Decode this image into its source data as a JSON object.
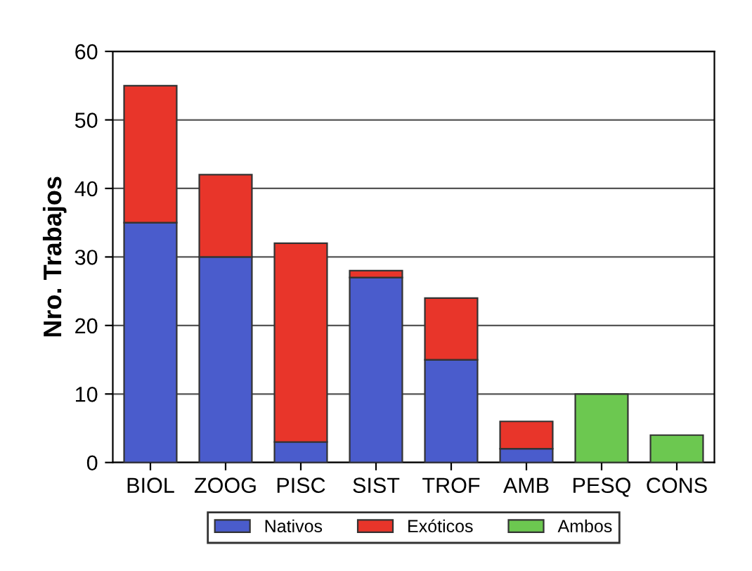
{
  "chart_data": {
    "type": "bar",
    "stacked": true,
    "ylabel": "Nro. Trabajos",
    "categories": [
      "BIOL",
      "ZOOG",
      "PISC",
      "SIST",
      "TROF",
      "AMB",
      "PESQ",
      "CONS"
    ],
    "series": [
      {
        "name": "Nativos",
        "color": "#4a5ccc",
        "values": [
          35,
          30,
          3,
          27,
          15,
          2,
          null,
          null
        ]
      },
      {
        "name": "Exóticos",
        "color": "#e8352a",
        "values": [
          20,
          12,
          29,
          1,
          9,
          4,
          null,
          null
        ]
      },
      {
        "name": "Ambos",
        "color": "#6cc850",
        "values": [
          null,
          null,
          null,
          null,
          null,
          null,
          10,
          4
        ]
      }
    ],
    "ylim": [
      0,
      60
    ],
    "yticks": [
      0,
      10,
      20,
      30,
      40,
      50,
      60
    ],
    "grid": "y",
    "legend": "bottom"
  }
}
